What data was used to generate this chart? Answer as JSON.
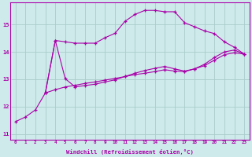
{
  "xlabel": "Windchill (Refroidissement éolien,°C)",
  "background_color": "#ceeaea",
  "grid_color": "#aacccc",
  "line_color": "#aa00aa",
  "xlim": [
    -0.5,
    23.5
  ],
  "ylim": [
    10.8,
    15.8
  ],
  "yticks": [
    11,
    12,
    13,
    14,
    15
  ],
  "xticks": [
    0,
    1,
    2,
    3,
    4,
    5,
    6,
    7,
    8,
    9,
    10,
    11,
    12,
    13,
    14,
    15,
    16,
    17,
    18,
    19,
    20,
    21,
    22,
    23
  ],
  "curve1_x": [
    0,
    1,
    2,
    3,
    4,
    5,
    6,
    7,
    8,
    9,
    10,
    11,
    12,
    13,
    14,
    15,
    16,
    17,
    18,
    19,
    20,
    21,
    22,
    23
  ],
  "curve1_y": [
    11.45,
    11.62,
    11.88,
    12.5,
    14.42,
    14.37,
    14.32,
    14.32,
    14.32,
    14.52,
    14.68,
    15.12,
    15.37,
    15.52,
    15.52,
    15.47,
    15.47,
    15.07,
    14.92,
    14.77,
    14.67,
    14.37,
    14.17,
    13.92
  ],
  "curve2_x": [
    3,
    4,
    5,
    6,
    7,
    8,
    9,
    10,
    11,
    12,
    13,
    14,
    15,
    16,
    17,
    18,
    19,
    20,
    21,
    22,
    23
  ],
  "curve2_y": [
    12.5,
    14.42,
    13.02,
    12.72,
    12.77,
    12.82,
    12.9,
    12.98,
    13.1,
    13.22,
    13.32,
    13.4,
    13.47,
    13.38,
    13.3,
    13.38,
    13.55,
    13.8,
    14.0,
    14.07,
    13.92
  ],
  "curve3_x": [
    3,
    4,
    5,
    6,
    7,
    8,
    9,
    10,
    11,
    12,
    13,
    14,
    15,
    16,
    17,
    18,
    19,
    20,
    21,
    22,
    23
  ],
  "curve3_y": [
    12.5,
    12.62,
    12.72,
    12.78,
    12.85,
    12.9,
    12.97,
    13.03,
    13.1,
    13.17,
    13.22,
    13.28,
    13.35,
    13.3,
    13.28,
    13.38,
    13.5,
    13.7,
    13.9,
    13.97,
    13.92
  ]
}
